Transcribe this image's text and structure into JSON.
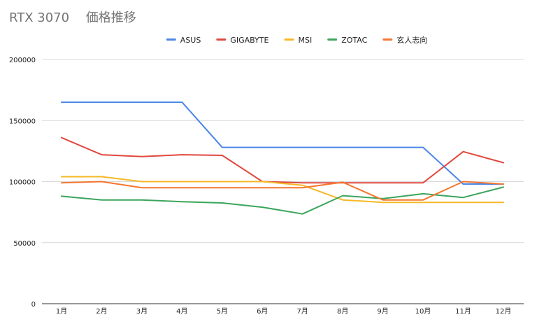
{
  "chart_data": {
    "type": "line",
    "title": "RTX 3070　 価格推移",
    "xlabel": "",
    "ylabel": "",
    "categories": [
      "1月",
      "2月",
      "3月",
      "4月",
      "5月",
      "6月",
      "7月",
      "8月",
      "9月",
      "10月",
      "11月",
      "12月"
    ],
    "ylim": [
      0,
      200000
    ],
    "yticks": [
      0,
      50000,
      100000,
      150000,
      200000
    ],
    "grid": true,
    "legend_position": "top",
    "series": [
      {
        "name": "ASUS",
        "color": "#4a86e8",
        "values": [
          165000,
          165000,
          165000,
          165000,
          128000,
          128000,
          128000,
          128000,
          128000,
          128000,
          98000,
          98000
        ]
      },
      {
        "name": "GIGABYTE",
        "color": "#e0483e",
        "values": [
          136000,
          122000,
          120500,
          122000,
          121500,
          100000,
          99000,
          99000,
          99000,
          99000,
          124500,
          115500
        ]
      },
      {
        "name": "MSI",
        "color": "#f6b826",
        "values": [
          104000,
          104000,
          100000,
          100000,
          100000,
          100000,
          97000,
          85000,
          83000,
          83000,
          83000,
          83000
        ]
      },
      {
        "name": "ZOTAC",
        "color": "#3ba55c",
        "values": [
          88000,
          85000,
          85000,
          83500,
          82500,
          79000,
          73500,
          88500,
          86000,
          90000,
          87000,
          95500
        ]
      },
      {
        "name": "玄人志向",
        "color": "#f4762f",
        "values": [
          99000,
          100000,
          95000,
          95000,
          95000,
          95000,
          95000,
          99500,
          85000,
          85000,
          100000,
          98000
        ]
      }
    ]
  }
}
